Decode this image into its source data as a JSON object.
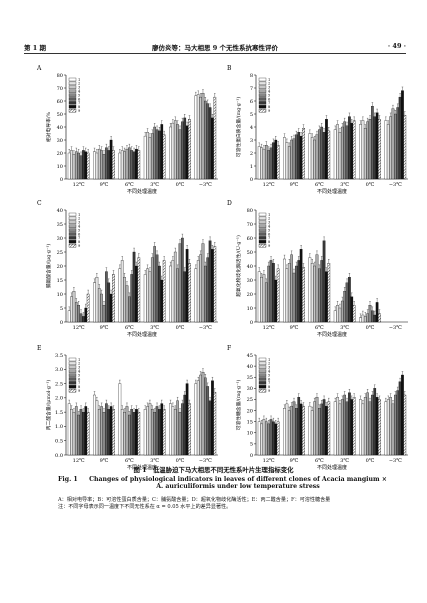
{
  "header": {
    "left": "第 1 期",
    "center": "廖仿炎等：马大相思 9 个无性系抗寒性评价",
    "right": "· 49 ·"
  },
  "caption": {
    "cn": "图 1　低温胁迫下马大相思不同无性系叶片生理指标变化",
    "en_label": "Fig. 1",
    "en": "Changes of physiological indicators in leaves of different clones of Acacia mangium × A. auriculiformis under low temperature stress",
    "note_line1": "A：相对电导率；B：可溶性蛋白质含量；C：脯氨酸含量；D：超氧化物歧化酶活性；E：丙二醛含量；F：可溶性糖含量",
    "note_line2": "注：不同字母表示同一温度下不同无性系在 α = 0.05 水平上的差异显著性。"
  },
  "legend_labels": [
    "1",
    "2",
    "3",
    "4",
    "5",
    "6",
    "7",
    "8",
    "9"
  ],
  "series_colors": [
    "#ffffff",
    "#e4e4e4",
    "#c8c8c8",
    "#a8a8a8",
    "#888888",
    "#5e5e5e",
    "#383838",
    "#111111",
    "hatch"
  ],
  "chart_data": [
    {
      "panel": "A",
      "type": "bar",
      "ylabel": "相对电导率/%",
      "xlabel": "不同处理温度",
      "categories": [
        "12℃",
        "9℃",
        "6℃",
        "3℃",
        "0℃",
        "−3℃"
      ],
      "ylim": [
        0,
        80
      ],
      "yticks": [
        0,
        10,
        20,
        30,
        40,
        50,
        60,
        70,
        80
      ],
      "values": [
        [
          20,
          22,
          19,
          21,
          20,
          18,
          22,
          21,
          20
        ],
        [
          21,
          20,
          23,
          22,
          19,
          24,
          22,
          30,
          22
        ],
        [
          20,
          22,
          21,
          23,
          24,
          22,
          21,
          23,
          22
        ],
        [
          33,
          36,
          32,
          35,
          40,
          38,
          37,
          42,
          34
        ],
        [
          40,
          43,
          45,
          42,
          38,
          44,
          47,
          41,
          46
        ],
        [
          64,
          65,
          63,
          66,
          60,
          58,
          55,
          47,
          63
        ]
      ]
    },
    {
      "panel": "B",
      "type": "bar",
      "ylabel": "可溶性蛋白质含量/(mg·g⁻¹)",
      "xlabel": "不同处理温度",
      "categories": [
        "12℃",
        "9℃",
        "6℃",
        "3℃",
        "0℃",
        "−3℃"
      ],
      "ylim": [
        0,
        8
      ],
      "yticks": [
        0,
        1,
        2,
        3,
        4,
        5,
        6,
        7,
        8
      ],
      "values": [
        [
          2.5,
          2.4,
          2.3,
          2.6,
          2.2,
          2.4,
          2.8,
          3.0,
          2.6
        ],
        [
          3.2,
          2.8,
          2.5,
          3.0,
          3.1,
          3.4,
          3.6,
          3.3,
          3.9
        ],
        [
          3.5,
          3.2,
          3.0,
          3.4,
          3.8,
          4.0,
          3.6,
          4.6,
          3.7
        ],
        [
          3.8,
          4.2,
          3.6,
          4.0,
          4.4,
          4.1,
          4.8,
          4.3,
          4.5
        ],
        [
          4.2,
          4.5,
          3.9,
          4.4,
          4.6,
          5.6,
          4.8,
          5.1,
          4.6
        ],
        [
          4.5,
          4.2,
          4.8,
          5.4,
          5.0,
          5.5,
          6.3,
          6.8,
          4.9
        ]
      ]
    },
    {
      "panel": "C",
      "type": "bar",
      "ylabel": "脯氨酸含量/(μg·g⁻¹)",
      "xlabel": "不同处理温度",
      "categories": [
        "12℃",
        "9℃",
        "6℃",
        "3℃",
        "0℃",
        "−3℃"
      ],
      "ylim": [
        0,
        40
      ],
      "yticks": [
        0,
        5,
        10,
        15,
        20,
        25,
        30,
        35,
        40
      ],
      "values": [
        [
          4,
          9,
          11,
          7,
          6,
          3,
          2,
          5,
          10
        ],
        [
          14,
          16,
          12,
          10,
          6,
          18,
          14,
          10,
          17
        ],
        [
          19,
          22,
          16,
          13,
          9,
          17,
          25,
          20,
          23
        ],
        [
          17,
          19,
          18,
          23,
          27,
          24,
          20,
          15,
          22
        ],
        [
          20,
          22,
          25,
          19,
          28,
          30,
          18,
          26,
          21
        ],
        [
          19,
          22,
          24,
          28,
          20,
          23,
          29,
          26,
          27
        ]
      ]
    },
    {
      "panel": "D",
      "type": "bar",
      "ylabel": "超氧化物歧化酶活性/(U·g⁻¹)",
      "xlabel": "不同处理温度",
      "categories": [
        "12℃",
        "9℃",
        "6℃",
        "3℃",
        "0℃",
        "−3℃"
      ],
      "ylim": [
        0,
        80
      ],
      "yticks": [
        0,
        10,
        20,
        30,
        40,
        50,
        60,
        70,
        80
      ],
      "values": [
        [
          36,
          32,
          34,
          28,
          40,
          44,
          42,
          30,
          38
        ],
        [
          45,
          38,
          42,
          48,
          35,
          40,
          44,
          52,
          39
        ],
        [
          46,
          42,
          40,
          48,
          38,
          44,
          58,
          36,
          42
        ],
        [
          8,
          12,
          10,
          15,
          22,
          28,
          32,
          18,
          12
        ],
        [
          3,
          5,
          4,
          6,
          12,
          8,
          5,
          14,
          6
        ],
        [
          0,
          0,
          0,
          0,
          0,
          0,
          0,
          0,
          0
        ]
      ]
    },
    {
      "panel": "E",
      "type": "bar",
      "ylabel": "丙二醛含量/(μmol·g⁻¹)",
      "xlabel": "不同处理温度",
      "categories": [
        "12℃",
        "9℃",
        "6℃",
        "3℃",
        "0℃",
        "−3℃"
      ],
      "ylim": [
        0,
        3.5
      ],
      "yticks": [
        0,
        0.5,
        1.0,
        1.5,
        2.0,
        2.5,
        3.0,
        3.5
      ],
      "values": [
        [
          1.8,
          1.6,
          1.5,
          1.7,
          1.4,
          1.6,
          1.5,
          1.7,
          1.5
        ],
        [
          2.1,
          1.9,
          1.6,
          1.7,
          1.5,
          1.8,
          1.6,
          1.7,
          1.6
        ],
        [
          2.5,
          1.6,
          1.5,
          1.7,
          1.4,
          1.6,
          1.5,
          1.6,
          1.5
        ],
        [
          1.6,
          1.7,
          1.8,
          1.6,
          1.5,
          1.7,
          1.6,
          1.8,
          1.6
        ],
        [
          1.8,
          1.7,
          1.6,
          1.9,
          1.5,
          1.8,
          2.1,
          2.5,
          1.8
        ],
        [
          2.5,
          2.6,
          2.8,
          2.9,
          2.7,
          2.4,
          1.9,
          2.6,
          2.2
        ]
      ]
    },
    {
      "panel": "F",
      "type": "bar",
      "ylabel": "可溶性糖含量/(mg·g⁻¹)",
      "xlabel": "不同处理温度",
      "categories": [
        "12℃",
        "9℃",
        "6℃",
        "3℃",
        "0℃",
        "−3℃"
      ],
      "ylim": [
        0,
        45
      ],
      "yticks": [
        0,
        5,
        10,
        15,
        20,
        25,
        30,
        35,
        40,
        45
      ],
      "values": [
        [
          15,
          14,
          16,
          15,
          14,
          16,
          15,
          14,
          15
        ],
        [
          21,
          23,
          20,
          22,
          24,
          21,
          26,
          23,
          22
        ],
        [
          22,
          20,
          24,
          26,
          21,
          23,
          25,
          22,
          24
        ],
        [
          24,
          26,
          23,
          25,
          27,
          24,
          28,
          25,
          26
        ],
        [
          25,
          23,
          26,
          28,
          24,
          27,
          30,
          26,
          25
        ],
        [
          24,
          25,
          26,
          23,
          27,
          29,
          33,
          36,
          27
        ]
      ]
    }
  ]
}
